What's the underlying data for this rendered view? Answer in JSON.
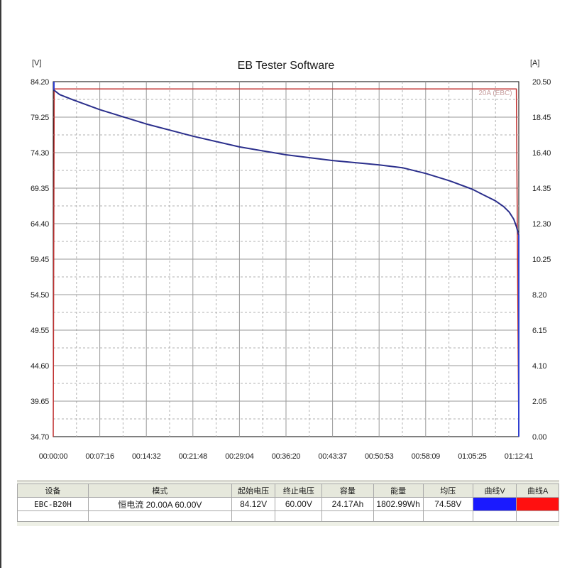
{
  "chart_data": {
    "type": "line",
    "title": "EB Tester Software",
    "y_left_unit": "[V]",
    "y_right_unit": "[A]",
    "y_left_ticks": [
      "84.20",
      "79.25",
      "74.30",
      "69.35",
      "64.40",
      "59.45",
      "54.50",
      "49.55",
      "44.60",
      "39.65",
      "34.70"
    ],
    "y_right_ticks": [
      "20.50",
      "18.45",
      "16.40",
      "14.35",
      "12.30",
      "10.25",
      "8.20",
      "6.15",
      "4.10",
      "2.05",
      "0.00"
    ],
    "x_ticks": [
      "00:00:00",
      "00:07:16",
      "00:14:32",
      "00:21:48",
      "00:29:04",
      "00:36:20",
      "00:43:37",
      "00:50:53",
      "00:58:09",
      "01:05:25",
      "01:12:41"
    ],
    "ylim_left": [
      34.7,
      84.2
    ],
    "ylim_right": [
      0.0,
      20.5
    ],
    "x_range_minutes": [
      0,
      72.68
    ],
    "grid": true,
    "annotation": "20A (EBC)",
    "series": [
      {
        "axis": "left",
        "color": "#2b2f8c",
        "x_minutes": [
          0,
          1,
          3,
          7.27,
          14.53,
          21.8,
          29.07,
          36.33,
          43.62,
          50.88,
          54.5,
          58.15,
          61.8,
          65.42,
          67.2,
          69.0,
          70.3,
          71.2,
          71.9,
          72.3,
          72.68
        ],
        "values": [
          83.1,
          82.4,
          81.7,
          80.3,
          78.3,
          76.6,
          75.1,
          74.0,
          73.2,
          72.6,
          72.2,
          71.4,
          70.4,
          69.2,
          68.4,
          67.6,
          66.8,
          66.0,
          65.0,
          64.0,
          62.8
        ]
      },
      {
        "axis": "right",
        "color": "#c03030",
        "x_minutes": [
          0,
          0.15,
          72.3,
          72.68
        ],
        "values": [
          0.0,
          20.08,
          20.08,
          0.0
        ]
      }
    ]
  },
  "summary": {
    "headers": [
      "设备",
      "模式",
      "起始电压",
      "终止电压",
      "容量",
      "能量",
      "均压",
      "曲线V",
      "曲线A"
    ],
    "device": "EBC-B20H",
    "mode": "恒电流  20.00A  60.00V",
    "start_voltage": "84.12V",
    "end_voltage": "60.00V",
    "capacity": "24.17Ah",
    "energy": "1802.99Wh",
    "avg_voltage": "74.58V",
    "curve_v_color": "#1a1aff",
    "curve_a_color": "#ff1010"
  }
}
